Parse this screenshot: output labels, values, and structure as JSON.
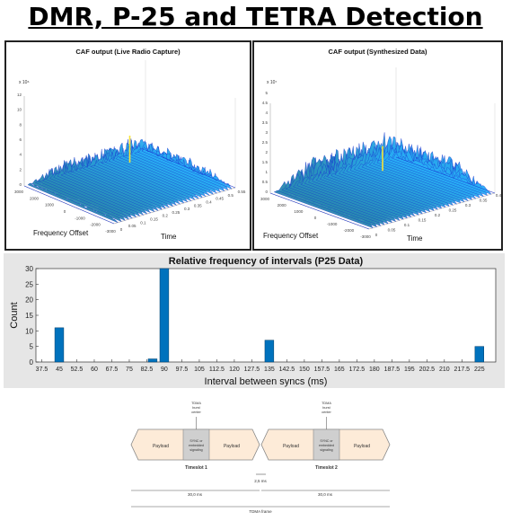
{
  "page": {
    "title": "DMR, P-25 and TETRA Detection"
  },
  "panels": {
    "left": {
      "title": "CAF output (Live Radio Capture)",
      "xlabel": "Frequency Offset",
      "ylabel": "Time",
      "z_ticks": [
        "12",
        "10",
        "8",
        "6",
        "4",
        "2",
        "0"
      ],
      "z_exp": "x 10⁶",
      "x_ticks": [
        "3000",
        "2000",
        "1000",
        "0",
        "-1000",
        "-2000",
        "-3000"
      ],
      "y_ticks": [
        "0",
        "0.05",
        "0.1",
        "0.15",
        "0.2",
        "0.25",
        "0.3",
        "0.35",
        "0.4",
        "0.45",
        "0.5",
        "0.55"
      ]
    },
    "right": {
      "title": "CAF output (Synthesized Data)",
      "xlabel": "Frequency Offset",
      "ylabel": "Time",
      "z_ticks": [
        "5",
        "4.5",
        "4",
        "3.5",
        "3",
        "2.5",
        "2",
        "1.5",
        "1",
        "0.5",
        "0"
      ],
      "z_exp": "x 10⁷",
      "x_ticks": [
        "3000",
        "2000",
        "1000",
        "0",
        "-1000",
        "-2000",
        "-3000"
      ],
      "y_ticks": [
        "0",
        "0.05",
        "0.1",
        "0.15",
        "0.2",
        "0.25",
        "0.3",
        "0.35",
        "0.4"
      ]
    }
  },
  "chart_data": {
    "type": "bar",
    "title": "Relative frequency of intervals (P25 Data)",
    "xlabel": "Interval between syncs (ms)",
    "ylabel": "Count",
    "x_ticks": [
      "37.5",
      "45",
      "52.5",
      "60",
      "67.5",
      "75",
      "82.5",
      "90",
      "97.5",
      "105",
      "112.5",
      "120",
      "127.5",
      "135",
      "142.5",
      "150",
      "157.5",
      "165",
      "172.5",
      "180",
      "187.5",
      "195",
      "202.5",
      "210",
      "217.5",
      "225"
    ],
    "xlim": [
      35,
      232
    ],
    "ylim": [
      0,
      30
    ],
    "y_ticks": [
      "0",
      "5",
      "10",
      "15",
      "20",
      "25",
      "30"
    ],
    "x": [
      45,
      85,
      90,
      135,
      225
    ],
    "values": [
      11,
      1,
      30,
      7,
      5
    ],
    "bar_color": "#0072BD"
  },
  "timing": {
    "burst_center": [
      "TDMA",
      "burst",
      "center"
    ],
    "payload": "Payload",
    "sync": [
      "SYNC or",
      "embedded",
      "signaling"
    ],
    "slot1": "Timeslot 1",
    "slot2": "Timeslot 2",
    "gap": "2,5 ms",
    "dur1": "30,0 ms",
    "dur2": "30,0 ms",
    "frame": "TDMA frame"
  }
}
